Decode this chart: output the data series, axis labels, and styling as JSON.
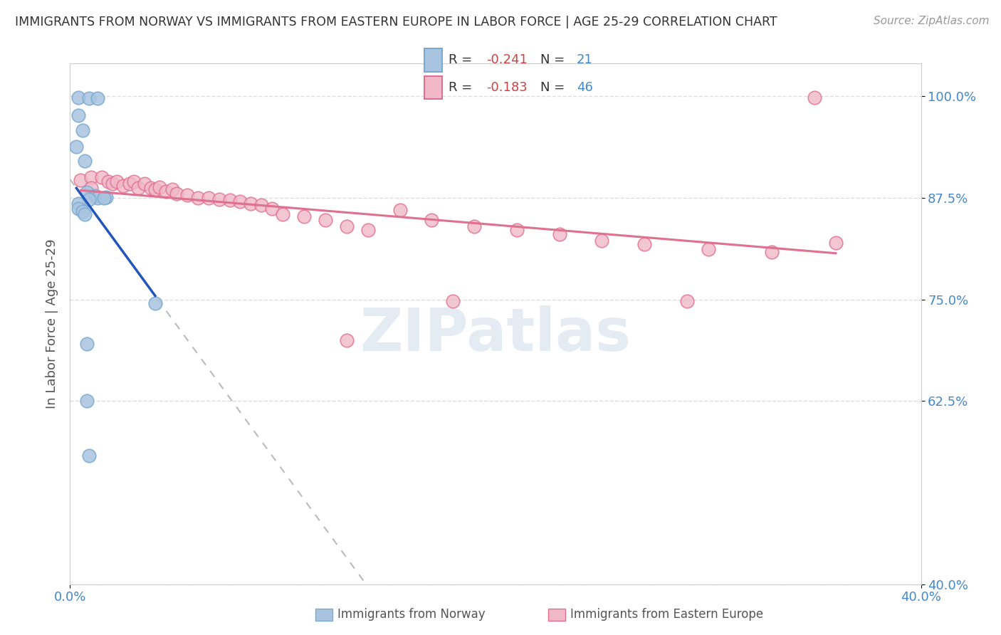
{
  "title": "IMMIGRANTS FROM NORWAY VS IMMIGRANTS FROM EASTERN EUROPE IN LABOR FORCE | AGE 25-29 CORRELATION CHART",
  "source": "Source: ZipAtlas.com",
  "ylabel": "In Labor Force | Age 25-29",
  "xlim": [
    0.0,
    0.4
  ],
  "ylim": [
    0.4,
    1.04
  ],
  "ytick_labels": [
    "40.0%",
    "62.5%",
    "75.0%",
    "87.5%",
    "100.0%"
  ],
  "ytick_values": [
    0.4,
    0.625,
    0.75,
    0.875,
    1.0
  ],
  "xtick_labels": [
    "0.0%",
    "40.0%"
  ],
  "xtick_values": [
    0.0,
    0.4
  ],
  "norway_color": "#a8c4e0",
  "norway_edge_color": "#7aaad0",
  "norway_line_color": "#2255bb",
  "eastern_color": "#f0b8c8",
  "eastern_edge_color": "#e07090",
  "eastern_line_color": "#e07090",
  "dashed_line_color": "#bbbbbb",
  "R_norway": -0.241,
  "N_norway": 21,
  "R_eastern": -0.183,
  "N_eastern": 46,
  "norway_x": [
    0.004,
    0.009,
    0.013,
    0.004,
    0.006,
    0.003,
    0.007,
    0.008,
    0.012,
    0.013,
    0.017,
    0.016,
    0.009,
    0.004,
    0.004,
    0.006,
    0.007,
    0.04,
    0.008,
    0.008,
    0.009
  ],
  "norway_y": [
    0.998,
    0.997,
    0.997,
    0.976,
    0.958,
    0.938,
    0.92,
    0.882,
    0.877,
    0.875,
    0.876,
    0.875,
    0.873,
    0.868,
    0.862,
    0.858,
    0.855,
    0.745,
    0.695,
    0.625,
    0.558
  ],
  "eastern_x": [
    0.35,
    0.005,
    0.01,
    0.01,
    0.015,
    0.018,
    0.02,
    0.022,
    0.025,
    0.028,
    0.03,
    0.032,
    0.035,
    0.038,
    0.04,
    0.042,
    0.045,
    0.048,
    0.05,
    0.055,
    0.06,
    0.065,
    0.07,
    0.075,
    0.08,
    0.085,
    0.09,
    0.095,
    0.1,
    0.11,
    0.12,
    0.13,
    0.14,
    0.155,
    0.17,
    0.19,
    0.21,
    0.23,
    0.25,
    0.27,
    0.3,
    0.33,
    0.36,
    0.18,
    0.13,
    0.29
  ],
  "eastern_y": [
    0.998,
    0.897,
    0.9,
    0.887,
    0.9,
    0.895,
    0.892,
    0.895,
    0.89,
    0.892,
    0.895,
    0.887,
    0.892,
    0.887,
    0.885,
    0.888,
    0.883,
    0.885,
    0.88,
    0.878,
    0.875,
    0.875,
    0.873,
    0.872,
    0.87,
    0.868,
    0.866,
    0.862,
    0.855,
    0.852,
    0.848,
    0.84,
    0.835,
    0.86,
    0.848,
    0.84,
    0.835,
    0.83,
    0.822,
    0.818,
    0.812,
    0.808,
    0.82,
    0.748,
    0.7,
    0.748
  ],
  "watermark_text": "ZIPatlas",
  "background_color": "#ffffff",
  "grid_color": "#dddddd",
  "title_color": "#333333",
  "axis_label_color": "#555555",
  "tick_label_color": "#4488cc",
  "legend_R_color": "#cc4444",
  "legend_N_color": "#4488cc"
}
